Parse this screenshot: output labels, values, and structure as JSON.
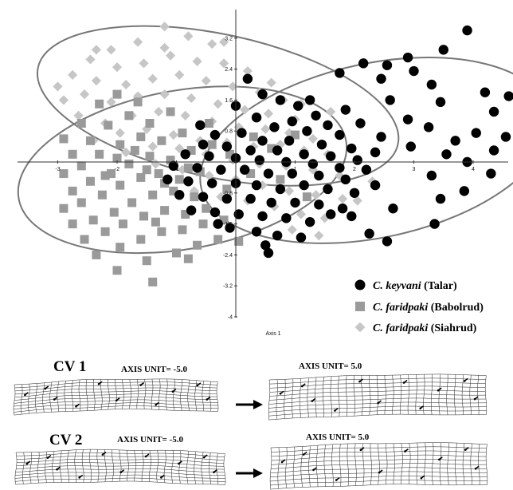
{
  "chart_data": {
    "type": "scatter",
    "xlabel": "Axis 1",
    "ylabel": "",
    "xlim": [
      -3.3,
      5.3
    ],
    "ylim": [
      -4.0,
      4.1
    ],
    "x_ticks": [
      "-3",
      "-2",
      "-1",
      "1",
      "2",
      "3",
      "4"
    ],
    "y_ticks": [
      "3.2",
      "2.4",
      "1.6",
      "0.8",
      "-0.8",
      "-1.6",
      "-2.4",
      "-3.2",
      "-4"
    ],
    "legend_position": "bottom-right",
    "series": [
      {
        "name": "C. keyvani (Talar)",
        "species": "C. keyvani",
        "locality": "(Talar)",
        "marker": "circle",
        "color": "#000000",
        "ellipse": {
          "cx": 2.35,
          "cy": 0.3,
          "rx": 3.0,
          "ry": 2.25,
          "angle_deg": 12
        },
        "points": [
          [
            3.9,
            3.4
          ],
          [
            3.5,
            2.9
          ],
          [
            2.9,
            2.7
          ],
          [
            2.15,
            2.55
          ],
          [
            2.55,
            2.5
          ],
          [
            3.0,
            2.35
          ],
          [
            1.75,
            2.3
          ],
          [
            2.45,
            2.15
          ],
          [
            3.3,
            2.0
          ],
          [
            4.2,
            1.8
          ],
          [
            4.6,
            1.7
          ],
          [
            2.6,
            1.6
          ],
          [
            3.45,
            1.55
          ],
          [
            1.85,
            1.35
          ],
          [
            4.35,
            1.3
          ],
          [
            2.9,
            1.1
          ],
          [
            2.1,
            1.0
          ],
          [
            3.25,
            0.9
          ],
          [
            4.05,
            0.75
          ],
          [
            2.45,
            0.65
          ],
          [
            3.7,
            0.55
          ],
          [
            2.95,
            0.4
          ],
          [
            4.55,
            0.65
          ],
          [
            4.35,
            0.3
          ],
          [
            3.55,
            0.2
          ],
          [
            2.35,
            0.25
          ],
          [
            3.9,
            0.0
          ],
          [
            4.3,
            -0.3
          ],
          [
            3.3,
            -0.35
          ],
          [
            3.85,
            -0.75
          ],
          [
            2.35,
            -0.6
          ],
          [
            3.45,
            -0.95
          ],
          [
            2.65,
            -1.2
          ],
          [
            1.95,
            -1.4
          ],
          [
            3.35,
            -1.6
          ],
          [
            2.25,
            -1.85
          ],
          [
            2.55,
            -2.05
          ],
          [
            0.2,
            2.15
          ],
          [
            0.45,
            1.75
          ],
          [
            0.75,
            1.6
          ],
          [
            1.05,
            1.45
          ],
          [
            1.35,
            1.2
          ],
          [
            0.95,
            1.05
          ],
          [
            1.55,
            0.95
          ],
          [
            0.35,
            1.15
          ],
          [
            0.65,
            0.9
          ],
          [
            1.2,
            0.8
          ],
          [
            1.75,
            0.7
          ],
          [
            0.1,
            0.75
          ],
          [
            -0.35,
            0.7
          ],
          [
            0.45,
            0.55
          ],
          [
            0.9,
            0.55
          ],
          [
            1.45,
            0.45
          ],
          [
            1.95,
            0.35
          ],
          [
            -0.55,
            0.45
          ],
          [
            -0.15,
            0.4
          ],
          [
            0.25,
            0.3
          ],
          [
            0.7,
            0.3
          ],
          [
            1.15,
            0.2
          ],
          [
            1.6,
            0.15
          ],
          [
            2.05,
            0.05
          ],
          [
            -0.85,
            0.2
          ],
          [
            -0.45,
            0.15
          ],
          [
            0.0,
            0.1
          ],
          [
            0.4,
            0.05
          ],
          [
            0.85,
            0.0
          ],
          [
            1.3,
            -0.05
          ],
          [
            1.75,
            -0.15
          ],
          [
            2.2,
            -0.2
          ],
          [
            -1.05,
            -0.1
          ],
          [
            -0.65,
            -0.15
          ],
          [
            -0.25,
            -0.2
          ],
          [
            0.15,
            -0.2
          ],
          [
            0.55,
            -0.3
          ],
          [
            0.95,
            -0.3
          ],
          [
            1.4,
            -0.35
          ],
          [
            1.85,
            -0.45
          ],
          [
            -1.15,
            -0.45
          ],
          [
            -0.8,
            -0.5
          ],
          [
            -0.4,
            -0.55
          ],
          [
            0.0,
            -0.55
          ],
          [
            0.35,
            -0.6
          ],
          [
            0.75,
            -0.7
          ],
          [
            1.15,
            -0.6
          ],
          [
            1.55,
            -0.7
          ],
          [
            2.0,
            -0.8
          ],
          [
            -0.95,
            -0.85
          ],
          [
            -0.55,
            -0.9
          ],
          [
            -0.15,
            -0.95
          ],
          [
            0.25,
            -0.95
          ],
          [
            0.6,
            -1.05
          ],
          [
            1.0,
            -1.05
          ],
          [
            1.4,
            -1.1
          ],
          [
            1.8,
            -1.2
          ],
          [
            -0.75,
            -1.25
          ],
          [
            -0.35,
            -1.3
          ],
          [
            0.05,
            -1.35
          ],
          [
            0.45,
            -1.4
          ],
          [
            0.85,
            -1.45
          ],
          [
            1.25,
            -1.55
          ],
          [
            -0.1,
            -1.7
          ],
          [
            0.35,
            -1.8
          ],
          [
            0.7,
            -1.9
          ],
          [
            1.1,
            -1.95
          ],
          [
            0.5,
            -2.15
          ],
          [
            0.55,
            -2.35
          ],
          [
            -0.6,
            0.95
          ],
          [
            0.0,
            1.45
          ],
          [
            1.25,
            1.6
          ],
          [
            -0.3,
            -1.6
          ],
          [
            1.6,
            -1.35
          ]
        ]
      },
      {
        "name": "C. faridpaki (Babolrud)",
        "species": "C. faridpaki",
        "locality": "(Babolrud)",
        "marker": "square",
        "color": "#9a9a9a",
        "ellipse": {
          "cx": -0.9,
          "cy": -0.2,
          "rx": 2.8,
          "ry": 2.05,
          "angle_deg": 10
        },
        "points": [
          [
            -2.9,
            0.6
          ],
          [
            -2.6,
            1.0
          ],
          [
            -2.3,
            1.5
          ],
          [
            -2.0,
            1.75
          ],
          [
            -1.65,
            1.55
          ],
          [
            -2.75,
            0.2
          ],
          [
            -2.45,
            0.55
          ],
          [
            -2.15,
            0.95
          ],
          [
            -1.8,
            1.2
          ],
          [
            -1.45,
            1.0
          ],
          [
            -1.1,
            1.3
          ],
          [
            -2.9,
            -0.3
          ],
          [
            -2.6,
            -0.1
          ],
          [
            -2.3,
            0.2
          ],
          [
            -1.95,
            0.45
          ],
          [
            -1.6,
            0.65
          ],
          [
            -1.25,
            0.55
          ],
          [
            -0.9,
            0.75
          ],
          [
            -2.75,
            -0.75
          ],
          [
            -2.45,
            -0.5
          ],
          [
            -2.1,
            -0.3
          ],
          [
            -1.8,
            -0.05
          ],
          [
            -1.45,
            0.15
          ],
          [
            -1.1,
            0.05
          ],
          [
            -0.75,
            0.3
          ],
          [
            -2.9,
            -1.2
          ],
          [
            -2.6,
            -1.05
          ],
          [
            -2.25,
            -0.85
          ],
          [
            -1.95,
            -0.6
          ],
          [
            -1.6,
            -0.4
          ],
          [
            -1.3,
            -0.3
          ],
          [
            -0.95,
            -0.45
          ],
          [
            -0.6,
            -0.25
          ],
          [
            -2.75,
            -1.6
          ],
          [
            -2.4,
            -1.5
          ],
          [
            -2.05,
            -1.3
          ],
          [
            -1.75,
            -1.05
          ],
          [
            -1.4,
            -0.85
          ],
          [
            -1.05,
            -0.75
          ],
          [
            -0.7,
            -0.9
          ],
          [
            -2.55,
            -2.0
          ],
          [
            -2.2,
            -1.8
          ],
          [
            -1.9,
            -1.6
          ],
          [
            -1.55,
            -1.4
          ],
          [
            -1.2,
            -1.25
          ],
          [
            -0.85,
            -1.35
          ],
          [
            -0.5,
            -1.2
          ],
          [
            -2.35,
            -2.4
          ],
          [
            -1.95,
            -2.2
          ],
          [
            -1.6,
            -2.0
          ],
          [
            -1.25,
            -1.8
          ],
          [
            -0.9,
            -1.75
          ],
          [
            -0.55,
            -1.6
          ],
          [
            -0.2,
            -1.5
          ],
          [
            -1.5,
            -2.55
          ],
          [
            -1.0,
            -2.35
          ],
          [
            -0.65,
            -2.15
          ],
          [
            -0.3,
            -2.0
          ],
          [
            0.05,
            -2.05
          ],
          [
            -1.4,
            -3.1
          ],
          [
            -2.0,
            -2.8
          ],
          [
            -0.8,
            -2.5
          ],
          [
            -2.0,
            0.1
          ],
          [
            -1.7,
            0.3
          ],
          [
            -1.5,
            -0.2
          ],
          [
            -1.2,
            -0.55
          ],
          [
            -0.8,
            -0.15
          ],
          [
            -1.35,
            -1.55
          ],
          [
            -2.2,
            -0.35
          ],
          [
            -0.4,
            0.45
          ],
          [
            -0.1,
            0.2
          ],
          [
            0.25,
            -0.3
          ],
          [
            -0.15,
            -0.7
          ],
          [
            0.3,
            0.65
          ],
          [
            0.6,
            0.35
          ],
          [
            1.0,
            0.7
          ],
          [
            0.75,
            -0.45
          ],
          [
            1.2,
            -0.9
          ],
          [
            -0.45,
            1.0
          ]
        ]
      },
      {
        "name": "C. faridpaki (Siahrud)",
        "species": "C. faridpaki",
        "locality": "(Siahrud)",
        "marker": "diamond",
        "color": "#c6c6c6",
        "ellipse": {
          "cx": -0.3,
          "cy": 1.45,
          "rx": 3.1,
          "ry": 1.85,
          "angle_deg": -12
        },
        "points": [
          [
            -1.2,
            3.5
          ],
          [
            -0.8,
            3.25
          ],
          [
            -0.4,
            3.05
          ],
          [
            -1.65,
            3.1
          ],
          [
            -2.1,
            2.9
          ],
          [
            -2.45,
            2.65
          ],
          [
            -2.0,
            2.45
          ],
          [
            -1.55,
            2.55
          ],
          [
            -1.1,
            2.75
          ],
          [
            -0.65,
            2.6
          ],
          [
            -0.2,
            2.55
          ],
          [
            0.2,
            2.35
          ],
          [
            -2.75,
            2.25
          ],
          [
            -2.35,
            2.1
          ],
          [
            -1.85,
            2.0
          ],
          [
            -1.4,
            2.15
          ],
          [
            -0.95,
            2.25
          ],
          [
            -0.5,
            2.1
          ],
          [
            -0.05,
            1.95
          ],
          [
            0.4,
            1.8
          ],
          [
            0.8,
            1.6
          ],
          [
            -2.9,
            1.6
          ],
          [
            -2.55,
            1.75
          ],
          [
            -2.1,
            1.55
          ],
          [
            -1.65,
            1.7
          ],
          [
            -1.2,
            1.75
          ],
          [
            -0.75,
            1.65
          ],
          [
            -0.3,
            1.5
          ],
          [
            0.15,
            1.35
          ],
          [
            0.55,
            1.25
          ],
          [
            1.0,
            1.1
          ],
          [
            -2.65,
            1.2
          ],
          [
            -2.2,
            1.0
          ],
          [
            -1.75,
            1.2
          ],
          [
            -1.3,
            1.3
          ],
          [
            -0.85,
            1.2
          ],
          [
            -0.4,
            1.05
          ],
          [
            0.05,
            0.9
          ],
          [
            0.5,
            0.85
          ],
          [
            0.9,
            0.75
          ],
          [
            1.3,
            0.6
          ],
          [
            -2.4,
            0.55
          ],
          [
            -1.95,
            0.75
          ],
          [
            -1.5,
            0.85
          ],
          [
            -1.05,
            0.7
          ],
          [
            -0.6,
            0.55
          ],
          [
            -0.15,
            0.5
          ],
          [
            0.3,
            0.4
          ],
          [
            0.75,
            0.45
          ],
          [
            1.15,
            0.3
          ],
          [
            1.55,
            0.2
          ],
          [
            -1.85,
            0.25
          ],
          [
            -1.4,
            0.4
          ],
          [
            -0.95,
            0.35
          ],
          [
            -0.5,
            0.2
          ],
          [
            -0.05,
            0.05
          ],
          [
            0.4,
            -0.05
          ],
          [
            0.85,
            -0.1
          ],
          [
            1.3,
            -0.2
          ],
          [
            1.75,
            -0.35
          ],
          [
            -1.35,
            -0.05
          ],
          [
            -0.9,
            -0.2
          ],
          [
            -0.45,
            -0.35
          ],
          [
            0.0,
            -0.45
          ],
          [
            0.45,
            -0.6
          ],
          [
            0.9,
            -0.75
          ],
          [
            1.35,
            -0.85
          ],
          [
            1.8,
            -0.95
          ],
          [
            -0.7,
            -0.75
          ],
          [
            -0.25,
            -0.9
          ],
          [
            0.2,
            -1.0
          ],
          [
            0.65,
            -1.15
          ],
          [
            1.1,
            -1.35
          ],
          [
            1.5,
            -1.45
          ],
          [
            0.95,
            -1.75
          ],
          [
            1.4,
            -1.9
          ],
          [
            2.05,
            -1.0
          ],
          [
            2.3,
            -0.5
          ],
          [
            0.6,
            2.05
          ],
          [
            1.1,
            1.5
          ],
          [
            1.6,
            1.3
          ],
          [
            -1.2,
            2.95
          ],
          [
            -2.35,
            2.9
          ],
          [
            -0.2,
            3.1
          ],
          [
            -3.0,
            1.95
          ]
        ]
      }
    ]
  },
  "cv_panels": [
    {
      "title": "CV 1",
      "left_unit": "AXIS UNIT= -5.0",
      "right_unit": "AXIS UNIT= 5.0"
    },
    {
      "title": "CV 2",
      "left_unit": "AXIS UNIT= -5.0",
      "right_unit": "AXIS UNIT= 5.0"
    }
  ]
}
